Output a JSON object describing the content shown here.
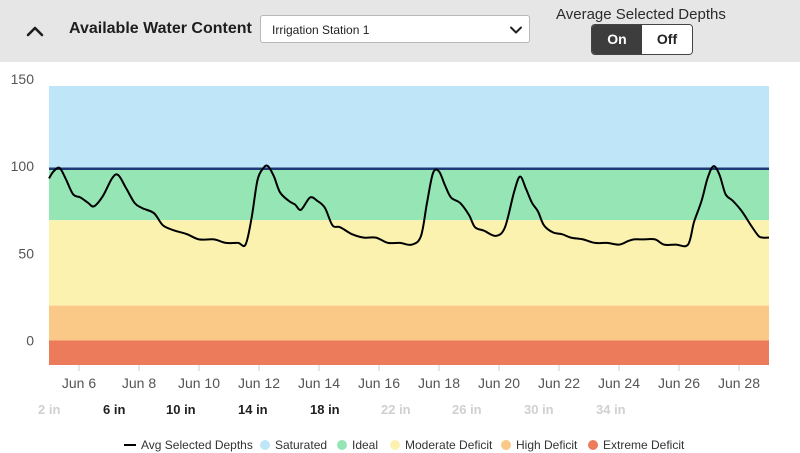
{
  "header": {
    "title": "Available Water Content",
    "station_select": {
      "value": "Irrigation Station 1"
    },
    "toggle": {
      "label": "Average Selected Depths",
      "on": "On",
      "off": "Off",
      "selected": "On"
    }
  },
  "depths": [
    {
      "label": "2 in",
      "active": false
    },
    {
      "label": "6 in",
      "active": true
    },
    {
      "label": "10 in",
      "active": true
    },
    {
      "label": "14 in",
      "active": true
    },
    {
      "label": "18 in",
      "active": true
    },
    {
      "label": "22 in",
      "active": false
    },
    {
      "label": "26 in",
      "active": false
    },
    {
      "label": "30 in",
      "active": false
    },
    {
      "label": "34 in",
      "active": false
    }
  ],
  "legend": [
    {
      "label": "Avg Selected Depths",
      "color": "#000000",
      "kind": "line"
    },
    {
      "label": "Saturated",
      "color": "#bfe6f8",
      "kind": "dot"
    },
    {
      "label": "Ideal",
      "color": "#95e5b5",
      "kind": "dot"
    },
    {
      "label": "Moderate Deficit",
      "color": "#fbf2b0",
      "kind": "dot"
    },
    {
      "label": "High Deficit",
      "color": "#fbc987",
      "kind": "dot"
    },
    {
      "label": "Extreme Deficit",
      "color": "#ec7b5c",
      "kind": "dot"
    }
  ],
  "chart_data": {
    "type": "line",
    "x_unit": "day of June",
    "xlim": [
      5,
      29
    ],
    "ylim": [
      -15,
      150
    ],
    "y_ticks": [
      150,
      100,
      50,
      0
    ],
    "x_ticks": [
      "Jun 6",
      "Jun 8",
      "Jun 10",
      "Jun 12",
      "Jun 14",
      "Jun 16",
      "Jun 18",
      "Jun 20",
      "Jun 22",
      "Jun 24",
      "Jun 26",
      "Jun 28"
    ],
    "x_tick_values": [
      6,
      8,
      10,
      12,
      14,
      16,
      18,
      20,
      22,
      24,
      26,
      28
    ],
    "grid": false,
    "bands": [
      {
        "name": "Saturated",
        "from": 99,
        "to": 150,
        "color": "#bfe6f8"
      },
      {
        "name": "Ideal",
        "from": 69,
        "to": 99,
        "color": "#95e5b5"
      },
      {
        "name": "Moderate Deficit",
        "from": 20,
        "to": 69,
        "color": "#fbf2b0"
      },
      {
        "name": "High Deficit",
        "from": 0,
        "to": 20,
        "color": "#fbc987"
      },
      {
        "name": "Extreme Deficit",
        "from": -10,
        "to": 0,
        "color": "#ec7b5c"
      }
    ],
    "threshold_line": {
      "value": 98.5,
      "color": "#1f3a77"
    },
    "series": [
      {
        "name": "Avg Selected Depths",
        "color": "#000000",
        "x": [
          5.0,
          5.15,
          5.35,
          5.55,
          5.8,
          6.05,
          6.3,
          6.5,
          6.8,
          7.1,
          7.3,
          7.55,
          7.85,
          8.1,
          8.5,
          8.8,
          9.2,
          9.6,
          10.0,
          10.5,
          10.9,
          11.3,
          11.55,
          11.75,
          11.95,
          12.15,
          12.3,
          12.5,
          12.7,
          13.0,
          13.2,
          13.4,
          13.7,
          13.95,
          14.2,
          14.45,
          14.7,
          15.1,
          15.5,
          15.9,
          16.3,
          16.7,
          17.1,
          17.4,
          17.6,
          17.8,
          18.0,
          18.2,
          18.4,
          18.7,
          19.0,
          19.2,
          19.5,
          19.9,
          20.2,
          20.5,
          20.7,
          20.9,
          21.1,
          21.3,
          21.5,
          21.8,
          22.1,
          22.4,
          22.8,
          23.2,
          23.6,
          24.0,
          24.3,
          24.5,
          24.8,
          25.2,
          25.5,
          25.9,
          26.3,
          26.5,
          26.75,
          26.95,
          27.15,
          27.35,
          27.55,
          27.8,
          28.1,
          28.4,
          28.65,
          28.8,
          29.0
        ],
        "y": [
          93,
          97,
          99,
          93,
          84,
          82,
          79,
          77,
          83,
          93,
          95,
          88,
          79,
          76,
          73,
          66,
          63,
          61,
          58,
          58,
          56,
          56,
          55,
          70,
          92,
          99,
          100,
          94,
          85,
          80,
          78,
          75,
          82,
          80,
          76,
          66,
          65,
          61,
          59,
          59,
          56,
          56,
          55,
          60,
          79,
          96,
          97,
          89,
          82,
          79,
          72,
          65,
          63,
          60,
          65,
          85,
          94,
          87,
          79,
          74,
          66,
          62,
          61,
          59,
          58,
          56,
          56,
          55,
          57,
          58,
          58,
          58,
          55,
          55,
          55,
          68,
          80,
          93,
          100,
          95,
          84,
          80,
          74,
          66,
          60,
          59,
          59
        ]
      }
    ]
  }
}
